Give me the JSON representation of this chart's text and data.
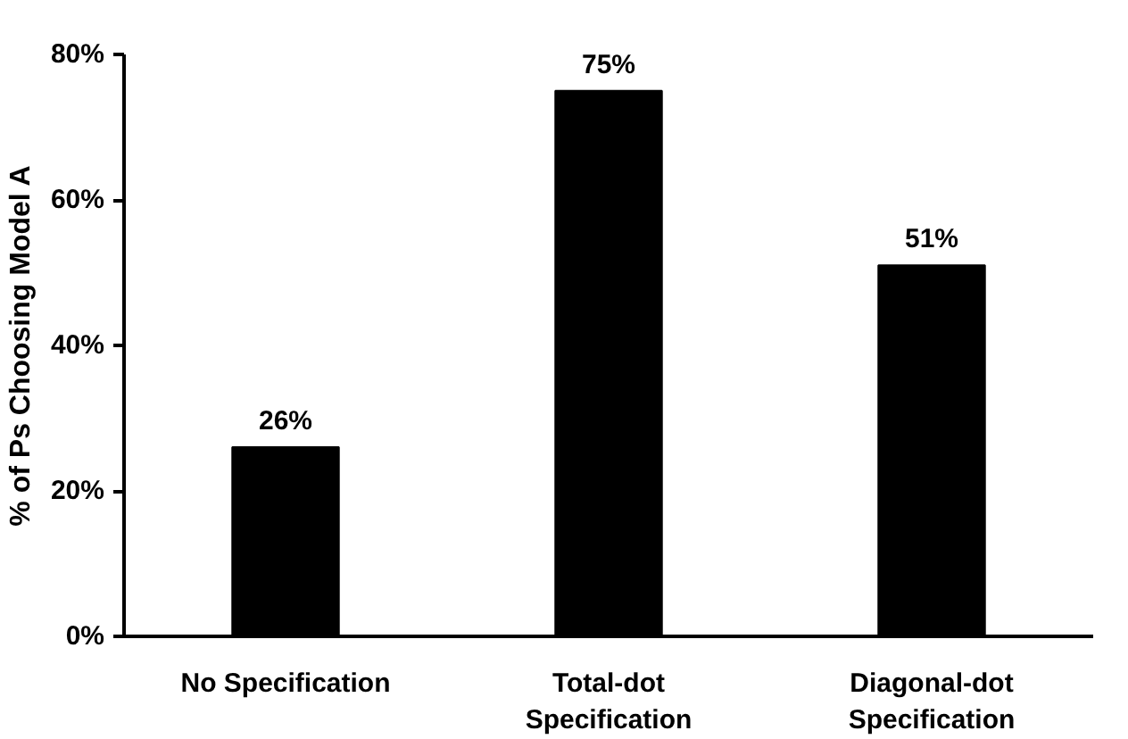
{
  "chart_data": {
    "type": "bar",
    "ylabel": "% of Ps Choosing Model A",
    "categories": [
      "No Specification",
      "Total-dot\nSpecification",
      "Diagonal-dot\nSpecification"
    ],
    "values": [
      26,
      75,
      51
    ],
    "color": "#000000",
    "value_labels": [
      "26%",
      "75%",
      "51%"
    ],
    "ylim": [
      0,
      80
    ],
    "yticks": [
      {
        "value": 0,
        "label": "0%"
      },
      {
        "value": 20,
        "label": "20%"
      },
      {
        "value": 40,
        "label": "40%"
      },
      {
        "value": 60,
        "label": "60%"
      },
      {
        "value": 80,
        "label": "80%"
      }
    ],
    "grid": false
  }
}
